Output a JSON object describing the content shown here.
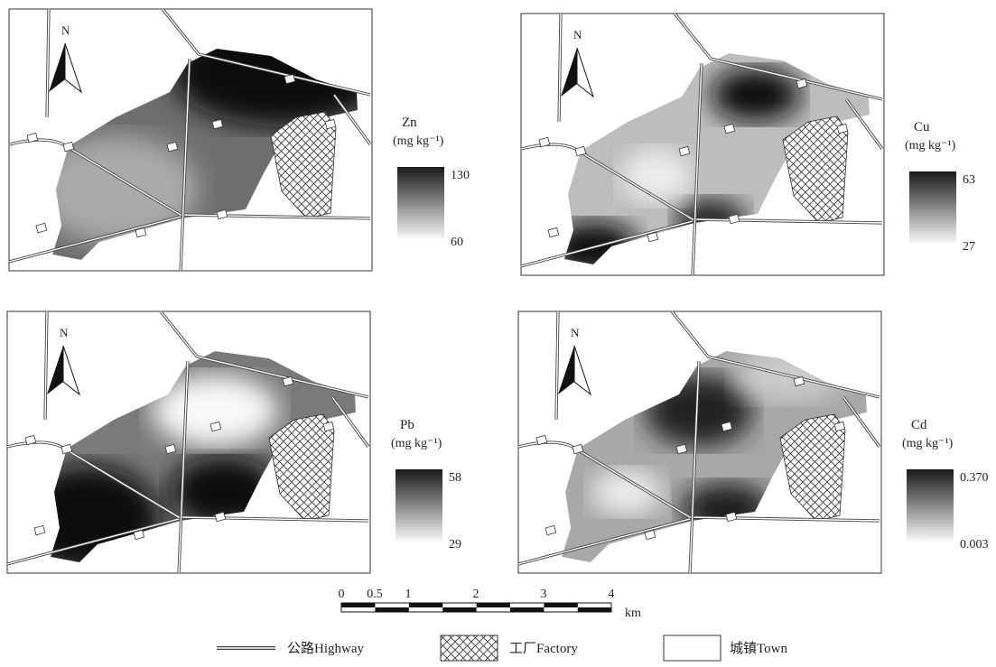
{
  "panels": [
    {
      "north": "N",
      "element": "Zn",
      "unit": "(mg kg⁻¹)",
      "legend_max": "130",
      "legend_min": "60"
    },
    {
      "north": "N",
      "element": "Cu",
      "unit": "(mg kg⁻¹)",
      "legend_max": "63",
      "legend_min": "27"
    },
    {
      "north": "N",
      "element": "Pb",
      "unit": "(mg kg⁻¹)",
      "legend_max": "58",
      "legend_min": "29"
    },
    {
      "north": "N",
      "element": "Cd",
      "unit": "(mg kg⁻¹)",
      "legend_max": "0.370",
      "legend_min": "0.003"
    }
  ],
  "scale_bar": {
    "labels": [
      "0",
      "0.5",
      "1",
      "2",
      "3",
      "4"
    ],
    "unit": "km"
  },
  "legend": [
    {
      "label": "公路Highway"
    },
    {
      "label": "工厂Factory"
    },
    {
      "label": "城镇Town"
    }
  ]
}
